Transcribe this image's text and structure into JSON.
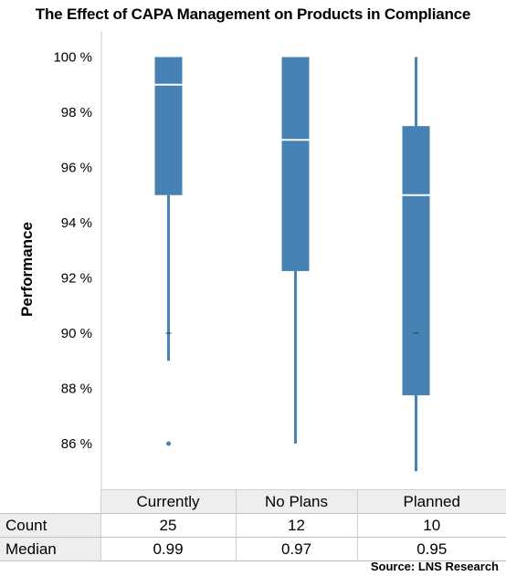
{
  "chart_data": {
    "type": "boxplot",
    "title": "The Effect of CAPA Management on Products in Compliance",
    "ylabel": "Performance",
    "xlabel": "",
    "ylim": [
      84.8,
      101.0
    ],
    "yticks": [
      86,
      88,
      90,
      92,
      94,
      96,
      98,
      100
    ],
    "ytick_labels": [
      "86 %",
      "88 %",
      "90 %",
      "92 %",
      "94 %",
      "96 %",
      "98 %",
      "100 %"
    ],
    "categories": [
      "Currently",
      "No Plans",
      "Planned"
    ],
    "boxes": [
      {
        "whisker_low": 89,
        "q1": 95,
        "median": 99,
        "q3": 100,
        "whisker_high": 100,
        "mean": 90,
        "outliers": [
          86
        ]
      },
      {
        "whisker_low": 86,
        "q1": 92.25,
        "median": 97,
        "q3": 100,
        "whisker_high": 100,
        "mean": null,
        "outliers": []
      },
      {
        "whisker_low": 85,
        "q1": 87.75,
        "median": 95,
        "q3": 97.5,
        "whisker_high": 100,
        "mean": 90,
        "outliers": []
      }
    ],
    "colors": {
      "box": "#4682b4",
      "median_line": "#ffffff",
      "axis": "#c8c8c8"
    }
  },
  "table": {
    "rows": [
      {
        "label": "Count",
        "values": [
          "25",
          "12",
          "10"
        ]
      },
      {
        "label": "Median",
        "values": [
          "0.99",
          "0.97",
          "0.95"
        ]
      }
    ]
  },
  "source": "Source: LNS Research"
}
